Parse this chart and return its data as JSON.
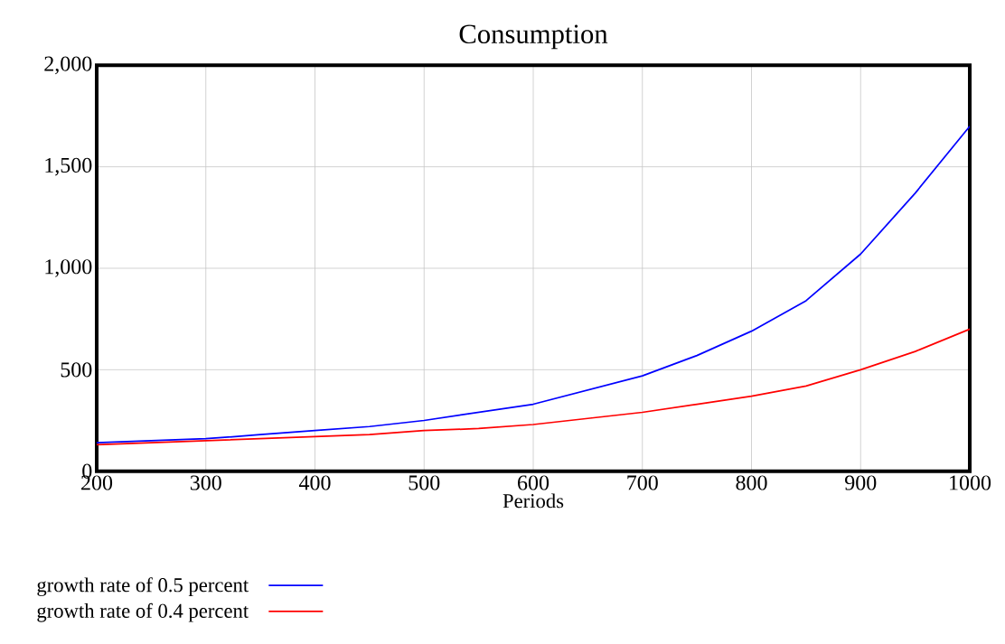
{
  "chart_data": {
    "type": "line",
    "title": "Consumption",
    "xlabel": "Periods",
    "x": [
      200,
      250,
      300,
      350,
      400,
      450,
      500,
      550,
      600,
      650,
      700,
      750,
      800,
      850,
      900,
      950,
      1000
    ],
    "series": [
      {
        "name": "growth rate of 0.5 percent",
        "color": "#0000ff",
        "values": [
          140,
          150,
          160,
          180,
          200,
          220,
          250,
          290,
          330,
          400,
          470,
          570,
          690,
          840,
          1070,
          1370,
          1700
        ]
      },
      {
        "name": "growth rate of 0.4 percent",
        "color": "#ff0000",
        "values": [
          130,
          140,
          150,
          160,
          170,
          180,
          200,
          210,
          230,
          260,
          290,
          330,
          370,
          420,
          500,
          590,
          700
        ]
      }
    ],
    "xlim": [
      200,
      1000
    ],
    "ylim": [
      0,
      2000
    ],
    "xticks": [
      200,
      300,
      400,
      500,
      600,
      700,
      800,
      900,
      1000
    ],
    "yticks": [
      0,
      500,
      {
        "value": 1000,
        "label": "1,000"
      },
      {
        "value": 1500,
        "label": "1,500"
      },
      {
        "value": 2000,
        "label": "2,000"
      }
    ],
    "grid": true,
    "legend": "bottom",
    "line_style": "solid"
  }
}
